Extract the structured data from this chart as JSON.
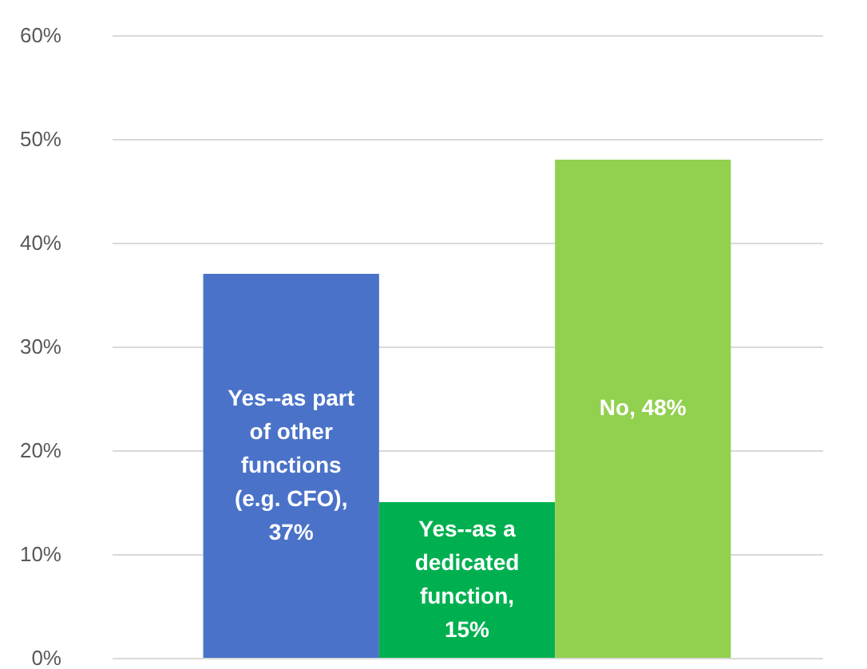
{
  "chart_data": {
    "type": "bar",
    "categories": [
      null,
      null,
      null
    ],
    "values": [
      37,
      15,
      48
    ],
    "colors": [
      "#4a72c8",
      "#00b050",
      "#92d050"
    ],
    "value_labels": [
      "Yes--as part of other functions (e.g. CFO), 37%",
      "Yes--as a dedicated function, 15%",
      "No, 48%"
    ],
    "ylim": [
      0,
      60
    ],
    "yticks": [
      {
        "value": 0,
        "label": "0%"
      },
      {
        "value": 10,
        "label": "10%"
      },
      {
        "value": 20,
        "label": "20%"
      },
      {
        "value": 30,
        "label": "30%"
      },
      {
        "value": 40,
        "label": "40%"
      },
      {
        "value": 50,
        "label": "50%"
      },
      {
        "value": 60,
        "label": "60%"
      }
    ],
    "grid": "y",
    "legend": false
  }
}
